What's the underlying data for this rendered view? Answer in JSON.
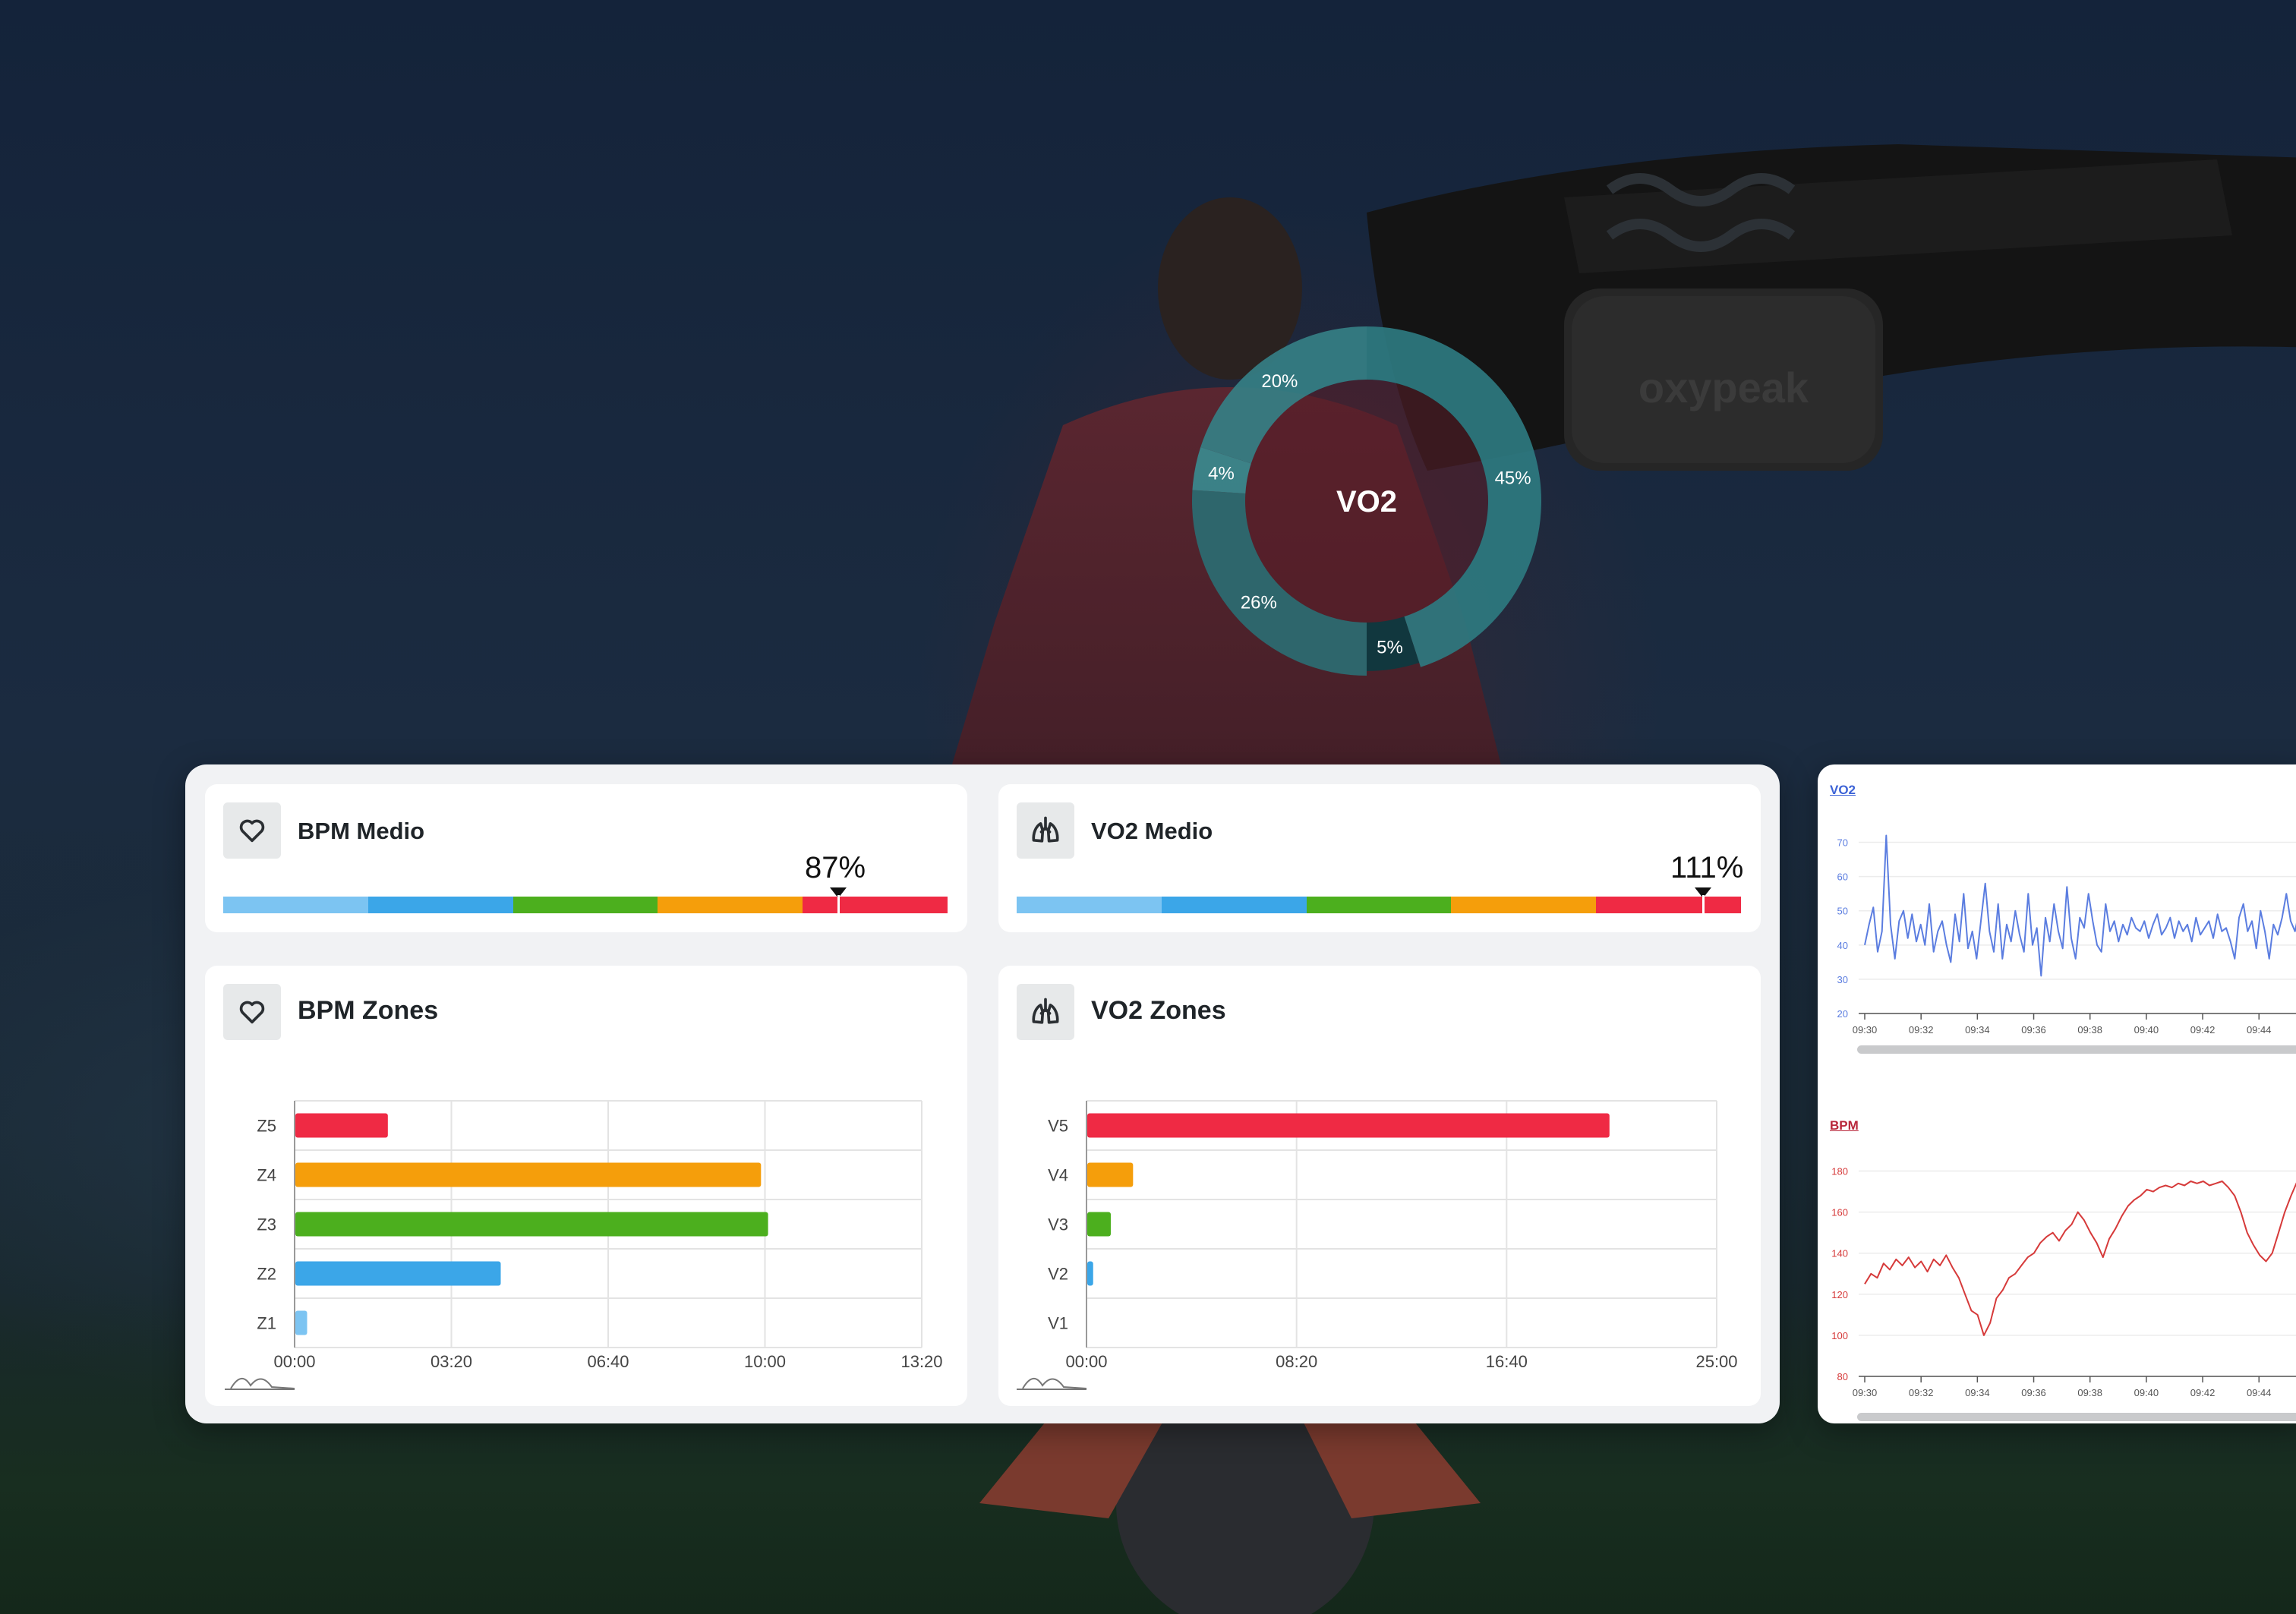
{
  "colors": {
    "zone1": "#7cc4f2",
    "zone2": "#3ba6e8",
    "zone3": "#4caf1e",
    "zone4": "#f59e0b",
    "zone5": "#ef2a44",
    "teal": "#2d7a80",
    "teal_dark": "#0d3d44",
    "vo2_line": "#5b7de0",
    "bpm_line": "#d63a3a"
  },
  "hero": {
    "brand": "oxypeak",
    "donut": {
      "center_label": "VO2",
      "slices": [
        {
          "label": "45%",
          "value": 45
        },
        {
          "label": "5%",
          "value": 5
        },
        {
          "label": "26%",
          "value": 26
        },
        {
          "label": "4%",
          "value": 4
        },
        {
          "label": "20%",
          "value": 20
        }
      ]
    }
  },
  "bpm_medio": {
    "title": "BPM Medio",
    "icon": "heart-icon",
    "percent_label": "87%",
    "percent": 87
  },
  "vo2_medio": {
    "title": "VO2 Medio",
    "icon": "lungs-icon",
    "percent_label": "111%",
    "percent": 111
  },
  "chart_data": [
    {
      "type": "bar",
      "title": "BPM Zones",
      "categories": [
        "Z5",
        "Z4",
        "Z3",
        "Z2",
        "Z1"
      ],
      "values": [
        118,
        594,
        603,
        262,
        15
      ],
      "x_ticks": [
        "00:00",
        "03:20",
        "06:40",
        "10:00",
        "13:20"
      ],
      "xlim": [
        0,
        800
      ],
      "value_unit": "seconds",
      "grid": true
    },
    {
      "type": "bar",
      "title": "VO2 Zones",
      "categories": [
        "V5",
        "V4",
        "V3",
        "V2",
        "V1"
      ],
      "values": [
        1243,
        109,
        56,
        14,
        0
      ],
      "x_ticks": [
        "00:00",
        "08:20",
        "16:40",
        "25:00"
      ],
      "xlim": [
        0,
        1500
      ],
      "value_unit": "seconds",
      "grid": true
    },
    {
      "type": "line",
      "title": "VO2",
      "y_ticks": [
        "70",
        "60",
        "50",
        "40",
        "30",
        "20"
      ],
      "ylim": [
        20,
        75
      ],
      "x_ticks": [
        "09:30",
        "09:32",
        "09:34",
        "09:36",
        "09:38",
        "09:40",
        "09:42",
        "09:44"
      ],
      "series": [
        {
          "values": [
            40,
            46,
            51,
            38,
            44,
            72,
            46,
            36,
            47,
            50,
            42,
            49,
            41,
            46,
            40,
            52,
            38,
            44,
            47,
            40,
            35,
            49,
            41,
            55,
            39,
            44,
            36,
            47,
            58,
            44,
            38,
            52,
            36,
            46,
            41,
            50,
            43,
            38,
            55,
            40,
            45,
            31,
            48,
            41,
            52,
            44,
            39,
            57,
            42,
            36,
            48,
            45,
            55,
            47,
            40,
            38,
            52,
            44,
            47,
            41,
            46,
            43,
            48,
            45,
            44,
            47,
            42,
            46,
            49,
            43,
            45,
            48,
            42,
            47,
            44,
            46,
            41,
            48,
            43,
            45,
            47,
            42,
            49,
            44,
            45,
            41,
            36,
            48,
            52,
            44,
            47,
            39,
            50,
            44,
            36,
            46,
            43,
            48,
            55,
            47,
            44,
            50,
            46
          ]
        }
      ]
    },
    {
      "type": "line",
      "title": "BPM",
      "y_ticks": [
        "180",
        "160",
        "140",
        "120",
        "100",
        "80"
      ],
      "ylim": [
        80,
        185
      ],
      "x_ticks": [
        "09:30",
        "09:32",
        "09:34",
        "09:36",
        "09:38",
        "09:40",
        "09:42",
        "09:44"
      ],
      "series": [
        {
          "values": [
            125,
            130,
            128,
            135,
            132,
            137,
            134,
            138,
            133,
            136,
            131,
            137,
            134,
            139,
            133,
            128,
            120,
            112,
            110,
            100,
            106,
            118,
            122,
            128,
            130,
            134,
            138,
            140,
            145,
            148,
            150,
            146,
            151,
            154,
            160,
            156,
            150,
            145,
            138,
            147,
            152,
            158,
            163,
            166,
            168,
            171,
            170,
            172,
            173,
            172,
            174,
            173,
            175,
            174,
            175,
            173,
            174,
            175,
            172,
            168,
            160,
            150,
            144,
            139,
            136,
            140,
            150,
            160,
            168,
            175,
            178
          ]
        }
      ]
    }
  ]
}
